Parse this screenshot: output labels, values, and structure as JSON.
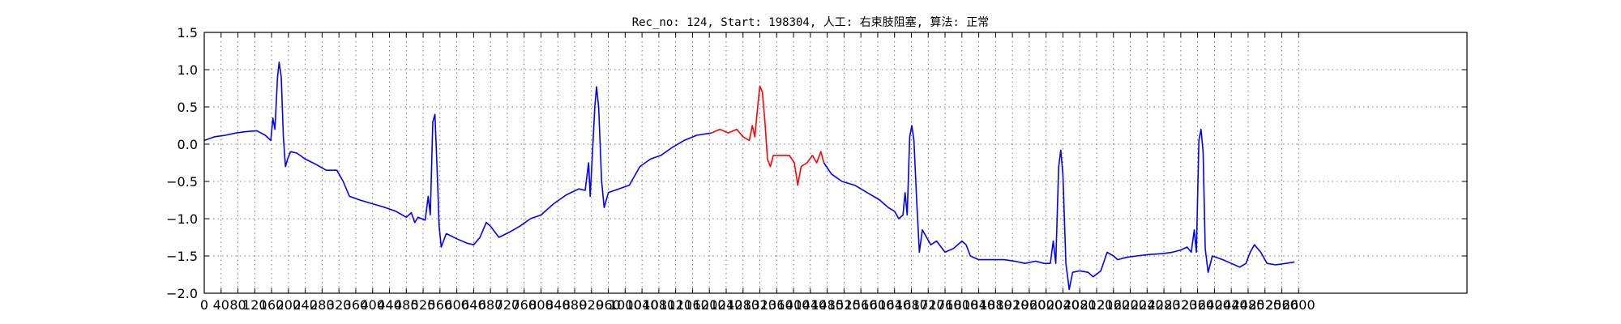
{
  "chart_data": {
    "type": "line",
    "title": "Rec_no: 124, Start: 198304, 人工: 右束肢阻塞, 算法: 正常",
    "xlabel": "",
    "ylabel": "",
    "xlim": [
      0,
      3000
    ],
    "ylim": [
      -2.0,
      1.5
    ],
    "grid": true,
    "yticks": [
      1.5,
      1.0,
      0.5,
      0.0,
      -0.5,
      -1.0,
      -1.5,
      -2.0
    ],
    "ytick_labels": [
      "1.5",
      "1.0",
      "0.5",
      "0.0",
      "−0.5",
      "−1.0",
      "−1.5",
      "−2.0"
    ],
    "xticks": [
      0,
      40,
      80,
      120,
      160,
      200,
      240,
      280,
      320,
      360,
      400,
      440,
      480,
      520,
      560,
      600,
      640,
      680,
      720,
      760,
      800,
      840,
      880,
      920,
      960,
      1000,
      1040,
      1080,
      1120,
      1160,
      1200,
      1240,
      1280,
      1320,
      1360,
      1400,
      1440,
      1480,
      1520,
      1560,
      1600,
      1640,
      1680,
      1720,
      1760,
      1800,
      1840,
      1880,
      1920,
      1960,
      2000,
      2040,
      2080,
      2120,
      2160,
      2200,
      2240,
      2280,
      2320,
      2360,
      2400,
      2440,
      2480,
      2520,
      2560,
      2600
    ],
    "series": [
      {
        "color": "#0000ff",
        "points": [
          [
            0,
            0.05
          ],
          [
            25,
            0.1
          ],
          [
            50,
            0.12
          ],
          [
            75,
            0.15
          ],
          [
            100,
            0.17
          ],
          [
            125,
            0.18
          ],
          [
            145,
            0.12
          ],
          [
            158,
            0.05
          ],
          [
            163,
            0.35
          ],
          [
            168,
            0.2
          ],
          [
            174,
            0.9
          ],
          [
            178,
            1.1
          ],
          [
            183,
            0.9
          ],
          [
            188,
            0.1
          ],
          [
            193,
            -0.3
          ],
          [
            198,
            -0.2
          ],
          [
            205,
            -0.1
          ],
          [
            220,
            -0.12
          ],
          [
            240,
            -0.2
          ],
          [
            265,
            -0.27
          ],
          [
            290,
            -0.35
          ],
          [
            315,
            -0.35
          ],
          [
            330,
            -0.5
          ],
          [
            345,
            -0.7
          ],
          [
            370,
            -0.75
          ],
          [
            400,
            -0.8
          ],
          [
            430,
            -0.85
          ],
          [
            455,
            -0.9
          ],
          [
            480,
            -0.98
          ],
          [
            492,
            -0.92
          ],
          [
            500,
            -1.05
          ],
          [
            508,
            -0.98
          ],
          [
            525,
            -1.02
          ],
          [
            532,
            -0.7
          ],
          [
            537,
            -0.95
          ],
          [
            543,
            0.3
          ],
          [
            548,
            0.4
          ],
          [
            553,
            -0.3
          ],
          [
            558,
            -1.1
          ],
          [
            563,
            -1.38
          ],
          [
            575,
            -1.2
          ],
          [
            600,
            -1.27
          ],
          [
            625,
            -1.33
          ],
          [
            640,
            -1.35
          ],
          [
            655,
            -1.25
          ],
          [
            670,
            -1.05
          ],
          [
            680,
            -1.1
          ],
          [
            700,
            -1.25
          ],
          [
            725,
            -1.18
          ],
          [
            750,
            -1.1
          ],
          [
            775,
            -1.0
          ],
          [
            800,
            -0.95
          ],
          [
            830,
            -0.8
          ],
          [
            860,
            -0.68
          ],
          [
            890,
            -0.6
          ],
          [
            905,
            -0.62
          ],
          [
            913,
            -0.25
          ],
          [
            917,
            -0.7
          ],
          [
            928,
            0.5
          ],
          [
            932,
            0.77
          ],
          [
            937,
            0.5
          ],
          [
            944,
            -0.5
          ],
          [
            950,
            -0.85
          ],
          [
            960,
            -0.65
          ],
          [
            985,
            -0.6
          ],
          [
            1010,
            -0.55
          ],
          [
            1035,
            -0.3
          ],
          [
            1060,
            -0.2
          ],
          [
            1085,
            -0.15
          ],
          [
            1110,
            -0.05
          ],
          [
            1140,
            0.05
          ],
          [
            1170,
            0.12
          ],
          [
            1205,
            0.15
          ]
        ]
      },
      {
        "color": "#ff0000",
        "points": [
          [
            1205,
            0.15
          ],
          [
            1225,
            0.2
          ],
          [
            1245,
            0.15
          ],
          [
            1265,
            0.2
          ],
          [
            1280,
            0.1
          ],
          [
            1295,
            0.05
          ],
          [
            1302,
            0.25
          ],
          [
            1308,
            0.1
          ],
          [
            1314,
            0.45
          ],
          [
            1320,
            0.78
          ],
          [
            1326,
            0.7
          ],
          [
            1332,
            0.3
          ],
          [
            1338,
            -0.2
          ],
          [
            1345,
            -0.3
          ],
          [
            1352,
            -0.15
          ],
          [
            1370,
            -0.15
          ],
          [
            1390,
            -0.15
          ],
          [
            1402,
            -0.25
          ],
          [
            1410,
            -0.55
          ],
          [
            1418,
            -0.3
          ],
          [
            1432,
            -0.25
          ],
          [
            1445,
            -0.15
          ],
          [
            1455,
            -0.25
          ],
          [
            1465,
            -0.1
          ],
          [
            1472,
            -0.25
          ]
        ]
      },
      {
        "color": "#0000ff",
        "points": [
          [
            1472,
            -0.25
          ],
          [
            1490,
            -0.4
          ],
          [
            1515,
            -0.5
          ],
          [
            1545,
            -0.55
          ],
          [
            1575,
            -0.65
          ],
          [
            1605,
            -0.75
          ],
          [
            1625,
            -0.85
          ],
          [
            1640,
            -0.9
          ],
          [
            1650,
            -1.0
          ],
          [
            1660,
            -0.95
          ],
          [
            1665,
            -0.65
          ],
          [
            1670,
            -0.95
          ],
          [
            1676,
            0.1
          ],
          [
            1681,
            0.25
          ],
          [
            1686,
            0.05
          ],
          [
            1693,
            -0.8
          ],
          [
            1699,
            -1.45
          ],
          [
            1706,
            -1.15
          ],
          [
            1716,
            -1.25
          ],
          [
            1726,
            -1.35
          ],
          [
            1740,
            -1.3
          ],
          [
            1760,
            -1.45
          ],
          [
            1780,
            -1.4
          ],
          [
            1800,
            -1.3
          ],
          [
            1810,
            -1.35
          ],
          [
            1820,
            -1.5
          ],
          [
            1840,
            -1.55
          ],
          [
            1870,
            -1.55
          ],
          [
            1900,
            -1.55
          ],
          [
            1925,
            -1.57
          ],
          [
            1950,
            -1.6
          ],
          [
            1975,
            -1.57
          ],
          [
            1995,
            -1.6
          ],
          [
            2010,
            -1.6
          ],
          [
            2017,
            -1.3
          ],
          [
            2023,
            -1.6
          ],
          [
            2030,
            -0.3
          ],
          [
            2035,
            -0.08
          ],
          [
            2040,
            -0.4
          ],
          [
            2047,
            -1.6
          ],
          [
            2055,
            -1.95
          ],
          [
            2063,
            -1.72
          ],
          [
            2080,
            -1.7
          ],
          [
            2100,
            -1.72
          ],
          [
            2112,
            -1.78
          ],
          [
            2130,
            -1.7
          ],
          [
            2145,
            -1.45
          ],
          [
            2160,
            -1.5
          ],
          [
            2170,
            -1.55
          ],
          [
            2190,
            -1.52
          ],
          [
            2215,
            -1.5
          ],
          [
            2245,
            -1.48
          ],
          [
            2275,
            -1.47
          ],
          [
            2300,
            -1.45
          ],
          [
            2320,
            -1.42
          ],
          [
            2335,
            -1.38
          ],
          [
            2345,
            -1.45
          ],
          [
            2352,
            -1.15
          ],
          [
            2357,
            -1.45
          ],
          [
            2363,
            0.05
          ],
          [
            2368,
            0.2
          ],
          [
            2373,
            -0.1
          ],
          [
            2378,
            -1.4
          ],
          [
            2385,
            -1.72
          ],
          [
            2395,
            -1.5
          ],
          [
            2420,
            -1.55
          ],
          [
            2440,
            -1.6
          ],
          [
            2460,
            -1.65
          ],
          [
            2475,
            -1.6
          ],
          [
            2485,
            -1.45
          ],
          [
            2495,
            -1.35
          ],
          [
            2510,
            -1.45
          ],
          [
            2525,
            -1.6
          ],
          [
            2545,
            -1.62
          ],
          [
            2570,
            -1.6
          ],
          [
            2590,
            -1.58
          ]
        ]
      }
    ]
  }
}
